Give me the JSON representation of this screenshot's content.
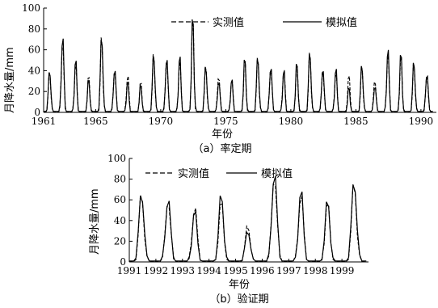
{
  "chart_data": [
    {
      "type": "line",
      "caption": "（a）率定期",
      "xlabel": "年份",
      "ylabel": "月降水量/mm",
      "xlim": [
        1961,
        1990
      ],
      "ylim": [
        0,
        100
      ],
      "x_ticks": [
        "1961",
        "1965",
        "1970",
        "1975",
        "1980",
        "1985",
        "1990"
      ],
      "y_ticks": [
        "0",
        "20",
        "40",
        "60",
        "80",
        "100"
      ],
      "legend_position": "top-right",
      "series": [
        {
          "name": "实测值",
          "style": "dashed",
          "annual_peaks": [
            41,
            74,
            49,
            35,
            75,
            43,
            37,
            29,
            58,
            54,
            52,
            90,
            46,
            37,
            34,
            51,
            54,
            45,
            44,
            46,
            59,
            44,
            41,
            36,
            46,
            33,
            60,
            55,
            49,
            38
          ]
        },
        {
          "name": "模拟值",
          "style": "solid",
          "annual_peaks": [
            43,
            78,
            51,
            32,
            78,
            44,
            30,
            27,
            60,
            56,
            55,
            92,
            47,
            32,
            32,
            52,
            56,
            47,
            41,
            48,
            61,
            45,
            43,
            24,
            48,
            27,
            62,
            57,
            51,
            40
          ]
        }
      ]
    },
    {
      "type": "line",
      "caption": "（b）验证期",
      "xlabel": "年份",
      "ylabel": "月降水量/mm",
      "xlim": [
        1991,
        1999
      ],
      "ylim": [
        0,
        100
      ],
      "x_ticks": [
        "1991",
        "1992",
        "1993",
        "1994",
        "1995",
        "1996",
        "1997",
        "1998",
        "1999"
      ],
      "y_ticks": [
        "0",
        "20",
        "40",
        "60",
        "80",
        "100"
      ],
      "legend_position": "top-left",
      "series": [
        {
          "name": "实测值",
          "style": "dashed",
          "annual_peaks": [
            68,
            63,
            55,
            59,
            36,
            88,
            68,
            58,
            78
          ]
        },
        {
          "name": "模拟值",
          "style": "solid",
          "annual_peaks": [
            71,
            65,
            50,
            66,
            32,
            92,
            70,
            60,
            83
          ]
        }
      ]
    }
  ]
}
